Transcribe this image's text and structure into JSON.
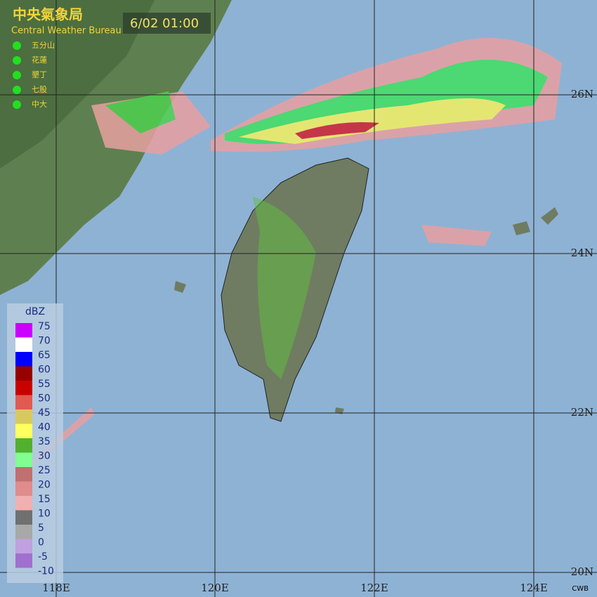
{
  "header": {
    "title": "中央氣象局",
    "subtitle": "Central Weather Bureau",
    "time": "6/02 01:00"
  },
  "stations": [
    "五分山",
    "花蓮",
    "墾丁",
    "七股",
    "中大"
  ],
  "legend": {
    "title": "dBZ",
    "ticks": [
      75,
      70,
      65,
      60,
      55,
      50,
      45,
      40,
      35,
      30,
      25,
      20,
      15,
      10,
      5,
      0,
      -5,
      -10
    ],
    "colors": [
      "#cc00ff",
      "#ffffff",
      "#0000ff",
      "#960000",
      "#c80000",
      "#e05a50",
      "#d8c860",
      "#ffff60",
      "#52b030",
      "#80ff90",
      "#c07070",
      "#e08c8c",
      "#f0b0b0",
      "#707070",
      "#a8a8a8",
      "#c0a0e0",
      "#a070d0"
    ]
  },
  "lon_labels": [
    "118E",
    "120E",
    "122E",
    "124E"
  ],
  "lat_labels": [
    "26N",
    "24N",
    "22N",
    "20N"
  ],
  "credit": "CWB"
}
